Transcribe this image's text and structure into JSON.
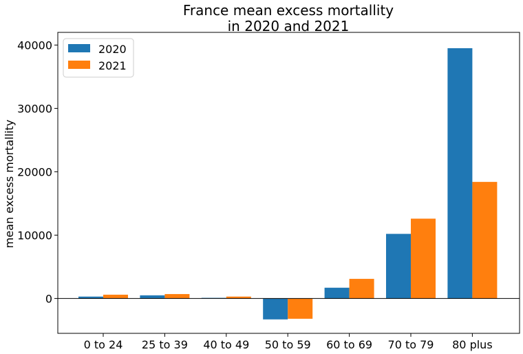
{
  "chart_data": {
    "type": "bar",
    "title_lines": [
      "France mean excess mortallity",
      "in 2020 and 2021"
    ],
    "xlabel": "",
    "ylabel": "mean excess mortallity",
    "categories": [
      "0 to 24",
      "25 to 39",
      "40 to 49",
      "50 to 59",
      "60 to 69",
      "70 to 79",
      "80 plus"
    ],
    "series": [
      {
        "name": "2020",
        "color": "#1f77b4",
        "values": [
          300,
          500,
          100,
          -3300,
          1700,
          10200,
          39500
        ]
      },
      {
        "name": "2021",
        "color": "#ff7f0e",
        "values": [
          600,
          700,
          300,
          -3200,
          3100,
          12600,
          18400
        ]
      }
    ],
    "ylim": [
      -5500,
      42000
    ],
    "yticks": [
      0,
      10000,
      20000,
      30000,
      40000
    ],
    "grid": false,
    "legend_position": "top-left",
    "zero_line": true
  }
}
